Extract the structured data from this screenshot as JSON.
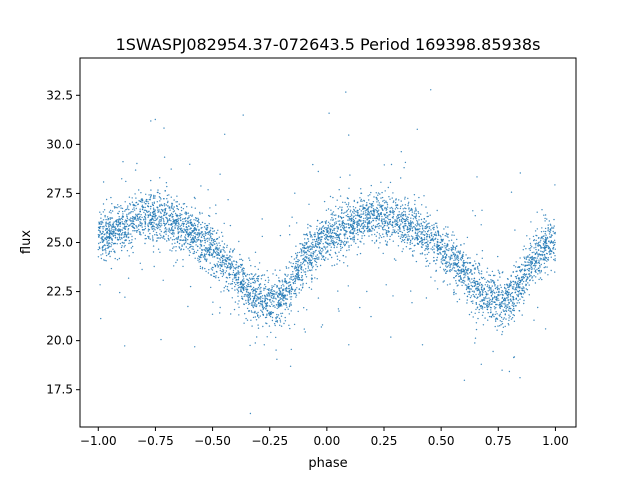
{
  "chart_data": {
    "type": "scatter",
    "title": "1SWASPJ082954.37-072643.5 Period 169398.85938s",
    "xlabel": "phase",
    "ylabel": "flux",
    "xlim": [
      -1.08,
      1.09
    ],
    "ylim": [
      15.6,
      34.4
    ],
    "x_ticks": [
      -1.0,
      -0.75,
      -0.5,
      -0.25,
      0.0,
      0.25,
      0.5,
      0.75,
      1.0
    ],
    "x_tick_labels": [
      "−1.00",
      "−0.75",
      "−0.50",
      "−0.25",
      "0.00",
      "0.25",
      "0.50",
      "0.75",
      "1.00"
    ],
    "y_ticks": [
      17.5,
      20.0,
      22.5,
      25.0,
      27.5,
      30.0,
      32.5
    ],
    "y_tick_labels": [
      "17.5",
      "20.0",
      "22.5",
      "25.0",
      "27.5",
      "30.0",
      "32.5"
    ],
    "grid": false,
    "marker_color": "#1f77b4",
    "series": [
      {
        "x": [
          -1.0,
          -0.9,
          -0.8,
          -0.75,
          -0.7,
          -0.6,
          -0.5,
          -0.4,
          -0.35,
          -0.3,
          -0.25,
          -0.2,
          -0.15,
          -0.1,
          0.0,
          0.1,
          0.2,
          0.25,
          0.3,
          0.4,
          0.5,
          0.6,
          0.65,
          0.7,
          0.75,
          0.8,
          0.85,
          0.9,
          1.0
        ],
        "y": [
          25.2,
          25.8,
          26.3,
          26.4,
          26.2,
          25.6,
          24.6,
          23.4,
          22.7,
          22.1,
          21.9,
          22.1,
          23.0,
          24.2,
          25.2,
          25.8,
          26.3,
          26.4,
          26.2,
          25.6,
          24.6,
          23.4,
          22.7,
          22.1,
          21.9,
          22.1,
          23.0,
          24.2,
          25.2
        ]
      }
    ]
  }
}
